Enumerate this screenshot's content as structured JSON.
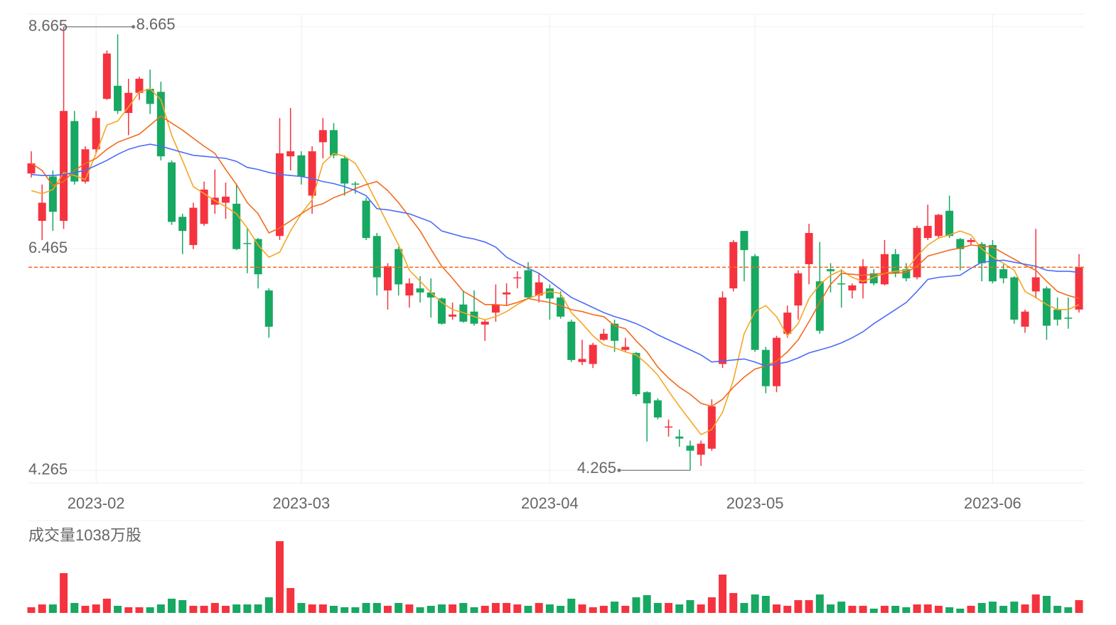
{
  "chart_data": {
    "type": "candlestick",
    "categories": [
      null,
      null,
      null,
      null,
      null,
      null,
      "2023-02",
      null,
      null,
      null,
      null,
      null,
      null,
      null,
      null,
      null,
      null,
      null,
      null,
      null,
      null,
      null,
      null,
      null,
      null,
      "2023-03",
      null,
      null,
      null,
      null,
      null,
      null,
      null,
      null,
      null,
      null,
      null,
      null,
      null,
      null,
      null,
      null,
      null,
      null,
      null,
      null,
      null,
      null,
      "2023-04",
      null,
      null,
      null,
      null,
      null,
      null,
      null,
      null,
      null,
      null,
      null,
      null,
      null,
      null,
      null,
      null,
      null,
      null,
      "2023-05",
      null,
      null,
      null,
      null,
      null,
      null,
      null,
      null,
      null,
      null,
      null,
      null,
      null,
      null,
      null,
      null,
      null,
      null,
      null,
      null,
      null,
      "2023-06",
      null,
      null,
      null,
      null,
      null,
      null,
      null,
      null
    ],
    "open": [
      7.21,
      6.74,
      7.18,
      6.74,
      7.73,
      7.13,
      7.45,
      7.95,
      8.08,
      7.81,
      8.01,
      8.05,
      8.02,
      7.32,
      6.78,
      6.5,
      6.71,
      6.9,
      6.92,
      6.91,
      6.52,
      6.56,
      6.05,
      6.59,
      7.38,
      7.39,
      6.99,
      7.52,
      7.64,
      7.36,
      7.11,
      6.94,
      6.59,
      6.05,
      6.46,
      6.0,
      6.07,
      6.03,
      5.97,
      5.79,
      5.91,
      5.84,
      5.71,
      5.83,
      6.01,
      6.17,
      6.25,
      6.0,
      6.07,
      5.98,
      5.74,
      5.34,
      5.32,
      5.56,
      5.72,
      5.46,
      5.43,
      5.04,
      4.96,
      4.69,
      4.6,
      4.51,
      4.42,
      4.48,
      5.32,
      6.07,
      6.64,
      6.39,
      5.46,
      5.1,
      5.62,
      5.9,
      6.31,
      6.14,
      6.26,
      6.12,
      6.05,
      6.12,
      6.22,
      6.11,
      6.41,
      6.26,
      6.18,
      6.57,
      6.59,
      6.84,
      6.56,
      6.53,
      6.51,
      6.5,
      6.26,
      6.18,
      5.69,
      6.04,
      6.07,
      5.86,
      5.78,
      5.86
    ],
    "high": [
      7.43,
      7.1,
      7.24,
      8.665,
      7.83,
      7.48,
      7.83,
      8.43,
      8.59,
      8.15,
      8.17,
      8.24,
      8.12,
      7.34,
      6.81,
      6.92,
      7.13,
      7.25,
      7.12,
      7.11,
      6.67,
      6.57,
      6.07,
      7.76,
      7.86,
      7.43,
      7.48,
      7.76,
      7.71,
      7.39,
      7.13,
      6.97,
      6.62,
      6.32,
      6.48,
      6.17,
      6.19,
      6.17,
      5.98,
      5.93,
      6.05,
      6.05,
      5.76,
      6.11,
      6.12,
      6.24,
      6.33,
      6.22,
      6.11,
      6.04,
      5.76,
      5.56,
      5.53,
      5.67,
      5.76,
      5.58,
      5.44,
      5.05,
      4.98,
      4.77,
      4.67,
      4.56,
      4.56,
      4.97,
      6.04,
      6.55,
      6.64,
      6.41,
      5.49,
      5.6,
      5.9,
      6.25,
      6.71,
      6.53,
      6.32,
      6.26,
      6.12,
      6.36,
      6.26,
      6.55,
      6.46,
      6.32,
      6.69,
      6.9,
      6.81,
      6.99,
      6.57,
      6.57,
      6.53,
      6.55,
      6.31,
      6.19,
      5.86,
      6.66,
      6.09,
      5.98,
      5.98,
      6.41
    ],
    "low": [
      7.17,
      6.55,
      6.64,
      6.66,
      7.1,
      7.11,
      7.41,
      7.94,
      7.8,
      7.59,
      7.94,
      7.8,
      7.34,
      6.7,
      6.41,
      6.46,
      6.69,
      6.81,
      6.76,
      6.45,
      6.22,
      6.07,
      5.58,
      6.55,
      7.24,
      7.1,
      6.81,
      7.36,
      7.36,
      6.99,
      7.01,
      6.55,
      6.0,
      5.86,
      6.0,
      5.88,
      5.93,
      5.78,
      5.71,
      5.76,
      5.73,
      5.7,
      5.55,
      5.74,
      5.9,
      6.07,
      5.97,
      5.93,
      5.76,
      5.77,
      5.34,
      5.31,
      5.28,
      5.55,
      5.44,
      5.44,
      5.0,
      4.55,
      4.77,
      4.6,
      4.5,
      4.265,
      4.31,
      4.46,
      5.28,
      6.04,
      6.14,
      5.44,
      5.03,
      5.04,
      5.58,
      5.76,
      6.11,
      5.62,
      6.03,
      5.88,
      5.97,
      5.97,
      6.1,
      6.1,
      6.18,
      6.14,
      6.16,
      6.55,
      6.57,
      6.57,
      6.25,
      6.5,
      6.14,
      6.12,
      6.12,
      5.72,
      5.63,
      5.97,
      5.56,
      5.7,
      5.67,
      5.83
    ],
    "close": [
      7.31,
      6.92,
      6.83,
      7.83,
      7.13,
      7.45,
      7.76,
      8.4,
      7.83,
      8.01,
      8.15,
      7.9,
      7.38,
      6.73,
      6.64,
      6.87,
      7.05,
      6.97,
      6.98,
      6.46,
      6.51,
      6.21,
      5.69,
      7.41,
      7.43,
      7.18,
      7.43,
      7.64,
      7.39,
      7.11,
      7.1,
      6.57,
      6.18,
      6.29,
      6.11,
      6.12,
      6.03,
      5.98,
      5.72,
      5.81,
      5.74,
      5.72,
      5.74,
      5.91,
      6.03,
      6.18,
      5.98,
      6.13,
      5.97,
      5.79,
      5.36,
      5.37,
      5.51,
      5.62,
      5.55,
      5.49,
      5.02,
      4.93,
      4.79,
      4.7,
      4.58,
      4.46,
      4.53,
      4.9,
      5.98,
      6.53,
      6.45,
      5.46,
      5.1,
      5.58,
      5.83,
      6.22,
      6.62,
      5.65,
      6.24,
      6.11,
      6.1,
      6.29,
      6.12,
      6.41,
      6.22,
      6.17,
      6.67,
      6.69,
      6.8,
      6.59,
      6.46,
      6.55,
      6.32,
      6.14,
      6.17,
      5.76,
      5.84,
      6.18,
      5.7,
      5.76,
      5.77,
      6.28
    ],
    "up_color": "#f5333f",
    "down_color": "#17a862",
    "moving_averages": [
      {
        "color": "#f5a623",
        "values": [
          7.04,
          7.01,
          7.05,
          7.22,
          7.19,
          7.15,
          7.41,
          7.69,
          7.73,
          7.87,
          8.02,
          8.05,
          7.94,
          7.59,
          7.34,
          7.08,
          7.01,
          6.94,
          6.88,
          6.81,
          6.67,
          6.5,
          6.38,
          6.43,
          6.64,
          6.81,
          6.95,
          7.31,
          7.41,
          7.38,
          7.31,
          7.13,
          6.92,
          6.71,
          6.5,
          6.25,
          6.14,
          6.03,
          5.93,
          5.86,
          5.83,
          5.79,
          5.76,
          5.79,
          5.84,
          5.91,
          5.97,
          6.01,
          6.04,
          6.02,
          5.83,
          5.72,
          5.6,
          5.51,
          5.48,
          5.44,
          5.41,
          5.32,
          5.21,
          5.05,
          4.9,
          4.76,
          4.62,
          4.67,
          4.84,
          5.16,
          5.62,
          5.84,
          5.9,
          5.79,
          5.6,
          5.72,
          5.97,
          6.11,
          6.2,
          6.25,
          6.18,
          6.14,
          6.18,
          6.22,
          6.24,
          6.25,
          6.39,
          6.5,
          6.57,
          6.6,
          6.64,
          6.6,
          6.46,
          6.38,
          6.32,
          6.25,
          6.04,
          5.98,
          5.91,
          5.86,
          5.86,
          5.91
        ]
      },
      {
        "color": "#f26b1d",
        "values": [
          7.31,
          7.24,
          7.09,
          7.13,
          7.24,
          7.31,
          7.36,
          7.45,
          7.52,
          7.56,
          7.6,
          7.69,
          7.78,
          7.71,
          7.64,
          7.56,
          7.48,
          7.41,
          7.25,
          7.1,
          6.92,
          6.81,
          6.62,
          6.67,
          6.74,
          6.81,
          6.88,
          6.91,
          6.97,
          7.01,
          7.06,
          7.1,
          7.13,
          7.04,
          6.92,
          6.78,
          6.64,
          6.46,
          6.29,
          6.17,
          6.04,
          5.98,
          5.91,
          5.91,
          5.9,
          5.93,
          5.97,
          5.95,
          5.93,
          5.9,
          5.86,
          5.84,
          5.81,
          5.79,
          5.7,
          5.67,
          5.55,
          5.44,
          5.29,
          5.18,
          5.09,
          5.02,
          4.93,
          4.9,
          4.97,
          5.09,
          5.19,
          5.27,
          5.3,
          5.35,
          5.44,
          5.56,
          5.74,
          5.93,
          6.11,
          6.22,
          6.21,
          6.2,
          6.21,
          6.22,
          6.22,
          6.23,
          6.29,
          6.39,
          6.42,
          6.45,
          6.47,
          6.5,
          6.49,
          6.48,
          6.42,
          6.36,
          6.3,
          6.25,
          6.14,
          6.04,
          6.0,
          5.97
        ]
      },
      {
        "color": "#4a6cf7",
        "values": [
          7.2,
          7.19,
          7.19,
          7.2,
          7.22,
          7.24,
          7.29,
          7.34,
          7.4,
          7.45,
          7.48,
          7.5,
          7.48,
          7.45,
          7.42,
          7.39,
          7.38,
          7.37,
          7.36,
          7.33,
          7.27,
          7.25,
          7.22,
          7.2,
          7.19,
          7.18,
          7.16,
          7.13,
          7.11,
          7.08,
          7.04,
          6.99,
          6.86,
          6.85,
          6.83,
          6.81,
          6.77,
          6.73,
          6.64,
          6.61,
          6.58,
          6.56,
          6.53,
          6.48,
          6.38,
          6.32,
          6.27,
          6.22,
          6.14,
          6.06,
          5.98,
          5.93,
          5.88,
          5.83,
          5.79,
          5.76,
          5.72,
          5.67,
          5.61,
          5.56,
          5.51,
          5.46,
          5.41,
          5.34,
          5.35,
          5.36,
          5.37,
          5.34,
          5.3,
          5.32,
          5.34,
          5.38,
          5.43,
          5.46,
          5.49,
          5.53,
          5.58,
          5.64,
          5.72,
          5.79,
          5.86,
          5.93,
          6.04,
          6.16,
          6.18,
          6.19,
          6.2,
          6.27,
          6.33,
          6.34,
          6.35,
          6.33,
          6.31,
          6.29,
          6.25,
          6.24,
          6.24,
          6.23
        ]
      }
    ],
    "ylim": [
      4.14,
      8.79
    ],
    "yticks": [
      8.665,
      6.465,
      4.265
    ],
    "grid": true,
    "max_label": 8.665,
    "min_label": 4.265,
    "volume": {
      "title": "成交量1038万股",
      "ylim": [
        0,
        1038
      ],
      "values": [
        82,
        123,
        123,
        576,
        144,
        103,
        123,
        206,
        103,
        82,
        82,
        82,
        123,
        206,
        185,
        103,
        103,
        144,
        103,
        123,
        123,
        123,
        226,
        1038,
        360,
        144,
        123,
        123,
        103,
        82,
        82,
        144,
        144,
        103,
        144,
        123,
        82,
        103,
        123,
        123,
        144,
        82,
        103,
        144,
        144,
        123,
        103,
        144,
        123,
        103,
        206,
        123,
        82,
        103,
        164,
        103,
        226,
        257,
        144,
        144,
        123,
        185,
        123,
        226,
        555,
        288,
        144,
        267,
        247,
        123,
        103,
        185,
        185,
        267,
        123,
        164,
        103,
        103,
        62,
        103,
        103,
        82,
        123,
        123,
        103,
        82,
        62,
        103,
        144,
        164,
        103,
        164,
        123,
        267,
        247,
        103,
        82,
        185
      ]
    }
  }
}
